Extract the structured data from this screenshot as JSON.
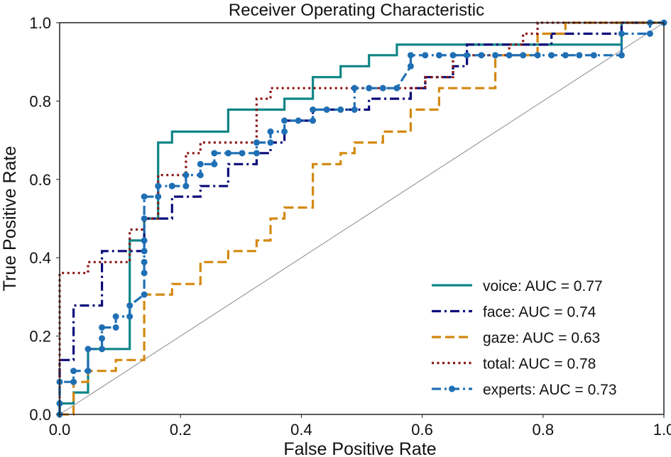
{
  "chart_data": {
    "type": "line",
    "title": "Receiver Operating Characteristic",
    "xlabel": "False Positive Rate",
    "ylabel": "True Positive Rate",
    "xlim": [
      0.0,
      1.0
    ],
    "ylim": [
      0.0,
      1.0
    ],
    "grid": false,
    "legend_position": "lower-right",
    "x_ticks": [
      "0.0",
      "0.2",
      "0.4",
      "0.6",
      "0.8",
      "1.0"
    ],
    "y_ticks": [
      "0.0",
      "0.2",
      "0.4",
      "0.6",
      "0.8",
      "1.0"
    ],
    "diagonal": {
      "x": [
        0,
        1
      ],
      "y": [
        0,
        1
      ],
      "color": "#888888"
    },
    "series": [
      {
        "name": "voice",
        "label": "voice: AUC = 0.77",
        "color": "#0f8585",
        "style": "solid",
        "markers": false,
        "x": [
          0.0,
          0.0,
          0.023,
          0.023,
          0.047,
          0.047,
          0.116,
          0.116,
          0.14,
          0.14,
          0.163,
          0.163,
          0.186,
          0.186,
          0.279,
          0.279,
          0.372,
          0.372,
          0.419,
          0.419,
          0.465,
          0.465,
          0.512,
          0.512,
          0.558,
          0.558,
          0.93,
          0.93,
          1.0
        ],
        "y": [
          0.0,
          0.028,
          0.028,
          0.056,
          0.056,
          0.167,
          0.167,
          0.444,
          0.444,
          0.5,
          0.5,
          0.694,
          0.694,
          0.722,
          0.722,
          0.778,
          0.778,
          0.806,
          0.806,
          0.861,
          0.861,
          0.889,
          0.889,
          0.917,
          0.917,
          0.944,
          0.944,
          1.0,
          1.0
        ]
      },
      {
        "name": "face",
        "label": "face: AUC = 0.74",
        "color": "#0b0b7a",
        "style": "dashdot",
        "markers": false,
        "x": [
          0.0,
          0.0,
          0.023,
          0.023,
          0.07,
          0.07,
          0.14,
          0.14,
          0.186,
          0.186,
          0.233,
          0.233,
          0.279,
          0.279,
          0.326,
          0.326,
          0.349,
          0.349,
          0.372,
          0.372,
          0.419,
          0.419,
          0.512,
          0.512,
          0.581,
          0.581,
          0.605,
          0.605,
          0.651,
          0.651,
          0.674,
          0.674,
          0.814,
          0.814,
          0.93,
          0.93,
          1.0
        ],
        "y": [
          0.0,
          0.139,
          0.139,
          0.278,
          0.278,
          0.417,
          0.417,
          0.5,
          0.5,
          0.556,
          0.556,
          0.583,
          0.583,
          0.639,
          0.639,
          0.667,
          0.667,
          0.694,
          0.694,
          0.75,
          0.75,
          0.778,
          0.778,
          0.806,
          0.806,
          0.833,
          0.833,
          0.861,
          0.861,
          0.889,
          0.889,
          0.944,
          0.944,
          0.972,
          0.972,
          1.0,
          1.0
        ]
      },
      {
        "name": "gaze",
        "label": "gaze: AUC = 0.63",
        "color": "#d4880f",
        "style": "dashed",
        "markers": false,
        "x": [
          0.0,
          0.023,
          0.023,
          0.047,
          0.047,
          0.093,
          0.093,
          0.14,
          0.14,
          0.186,
          0.186,
          0.233,
          0.233,
          0.279,
          0.279,
          0.326,
          0.326,
          0.349,
          0.349,
          0.372,
          0.372,
          0.419,
          0.419,
          0.465,
          0.465,
          0.488,
          0.488,
          0.535,
          0.535,
          0.581,
          0.581,
          0.628,
          0.628,
          0.721,
          0.721,
          0.791,
          0.791,
          0.837,
          0.837,
          1.0
        ],
        "y": [
          0.0,
          0.0,
          0.083,
          0.083,
          0.111,
          0.111,
          0.139,
          0.139,
          0.306,
          0.306,
          0.333,
          0.333,
          0.389,
          0.389,
          0.417,
          0.417,
          0.444,
          0.444,
          0.5,
          0.5,
          0.528,
          0.528,
          0.639,
          0.639,
          0.667,
          0.667,
          0.694,
          0.694,
          0.722,
          0.722,
          0.778,
          0.778,
          0.833,
          0.833,
          0.917,
          0.917,
          0.972,
          0.972,
          1.0,
          1.0
        ]
      },
      {
        "name": "total",
        "label": "total: AUC = 0.78",
        "color": "#8b1414",
        "style": "dotted",
        "markers": false,
        "x": [
          0.0,
          0.0,
          0.047,
          0.047,
          0.116,
          0.116,
          0.14,
          0.14,
          0.163,
          0.163,
          0.209,
          0.209,
          0.233,
          0.233,
          0.326,
          0.326,
          0.349,
          0.349,
          0.605,
          0.605,
          0.651,
          0.651,
          0.744,
          0.744,
          0.767,
          0.767,
          0.791,
          0.791,
          1.0
        ],
        "y": [
          0.0,
          0.361,
          0.361,
          0.389,
          0.389,
          0.472,
          0.472,
          0.5,
          0.5,
          0.611,
          0.611,
          0.667,
          0.667,
          0.694,
          0.694,
          0.806,
          0.806,
          0.833,
          0.833,
          0.861,
          0.861,
          0.917,
          0.917,
          0.944,
          0.944,
          0.972,
          0.972,
          1.0,
          1.0
        ]
      },
      {
        "name": "experts",
        "label": "experts: AUC = 0.73",
        "color": "#1f6fb4",
        "style": "dashdot",
        "markers": true,
        "x": [
          0.0,
          0.0,
          0.0,
          0.023,
          0.023,
          0.047,
          0.047,
          0.07,
          0.07,
          0.07,
          0.093,
          0.093,
          0.116,
          0.116,
          0.14,
          0.14,
          0.14,
          0.14,
          0.14,
          0.14,
          0.14,
          0.163,
          0.163,
          0.186,
          0.186,
          0.209,
          0.209,
          0.233,
          0.233,
          0.256,
          0.256,
          0.279,
          0.279,
          0.302,
          0.326,
          0.326,
          0.349,
          0.349,
          0.372,
          0.372,
          0.395,
          0.419,
          0.419,
          0.442,
          0.465,
          0.488,
          0.488,
          0.512,
          0.535,
          0.558,
          0.581,
          0.581,
          0.605,
          0.628,
          0.651,
          0.674,
          0.698,
          0.721,
          0.744,
          0.767,
          0.791,
          0.814,
          0.837,
          0.86,
          0.884,
          0.93,
          0.93,
          0.977,
          0.977,
          1.0
        ],
        "y": [
          0.0,
          0.028,
          0.083,
          0.083,
          0.111,
          0.111,
          0.167,
          0.167,
          0.194,
          0.222,
          0.222,
          0.25,
          0.25,
          0.278,
          0.306,
          0.361,
          0.389,
          0.417,
          0.444,
          0.5,
          0.556,
          0.556,
          0.583,
          0.583,
          0.583,
          0.583,
          0.611,
          0.611,
          0.639,
          0.639,
          0.667,
          0.667,
          0.667,
          0.667,
          0.667,
          0.694,
          0.694,
          0.722,
          0.722,
          0.75,
          0.75,
          0.75,
          0.778,
          0.778,
          0.778,
          0.778,
          0.833,
          0.833,
          0.833,
          0.833,
          0.889,
          0.917,
          0.917,
          0.917,
          0.917,
          0.917,
          0.917,
          0.917,
          0.917,
          0.917,
          0.917,
          0.917,
          0.917,
          0.917,
          0.917,
          0.917,
          0.972,
          0.972,
          1.0,
          1.0
        ]
      }
    ]
  }
}
